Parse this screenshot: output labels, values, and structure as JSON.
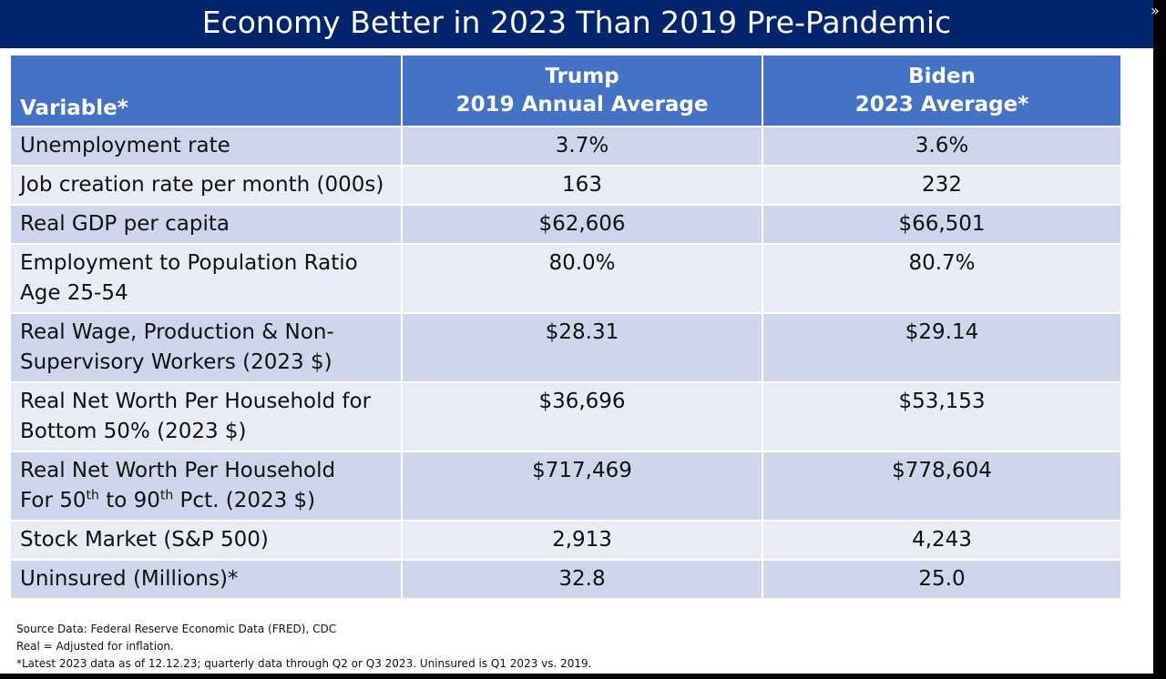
{
  "slide": {
    "title": "Economy Better in 2023 Than 2019 Pre-Pandemic"
  },
  "controls": {
    "expand_icon": "»"
  },
  "table": {
    "header": {
      "variable": "Variable*",
      "trump_name": "Trump",
      "trump_sub": "2019 Annual Average",
      "biden_name": "Biden",
      "biden_sub": "2023 Average*"
    },
    "rows": [
      {
        "variable": "Unemployment rate",
        "trump": "3.7%",
        "biden": "3.6%"
      },
      {
        "variable": "Job creation rate per month (000s)",
        "trump": "163",
        "biden": "232"
      },
      {
        "variable": "Real GDP per capita",
        "trump": "$62,606",
        "biden": "$66,501"
      },
      {
        "variable_line1": "Employment to Population Ratio",
        "variable_line2": "Age 25-54",
        "trump": "80.0%",
        "biden": "80.7%"
      },
      {
        "variable_line1": "Real Wage, Production & Non-",
        "variable_line2": "Supervisory Workers (2023 $)",
        "trump": "$28.31",
        "biden": "$29.14"
      },
      {
        "variable_line1": "Real Net Worth Per Household for",
        "variable_line2": "Bottom 50% (2023 $)",
        "trump": "$36,696",
        "biden": "$53,153"
      },
      {
        "variable_line1": "Real Net Worth Per Household",
        "variable_line2_a": "For 50",
        "sup_a": "th",
        "variable_line2_b": " to 90",
        "sup_b": "th",
        "variable_line2_c": " Pct. (2023 $)",
        "trump": "$717,469",
        "biden": "$778,604"
      },
      {
        "variable": "Stock Market (S&P 500)",
        "trump": "2,913",
        "biden": "4,243"
      },
      {
        "variable": "Uninsured (Millions)*",
        "trump": "32.8",
        "biden": "25.0"
      }
    ]
  },
  "footnotes": {
    "source": "Source Data:  Federal Reserve Economic Data (FRED), CDC",
    "real": "Real = Adjusted for inflation.",
    "latest": "*Latest 2023 data as of 12.12.23; quarterly data through Q2 or Q3 2023.  Uninsured is Q1 2023 vs. 2019."
  },
  "colors": {
    "title_bar": "#00256d",
    "header": "#4472c4",
    "row_dark": "#cfd5ea",
    "row_light": "#e9ebf5"
  }
}
